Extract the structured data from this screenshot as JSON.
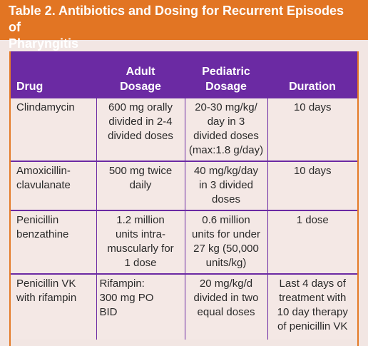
{
  "title": {
    "line1": "Table 2. Antibiotics and Dosing for Recurrent Episodes of",
    "line2": "Pharyngitis"
  },
  "headers": {
    "drug": "Drug",
    "adult_line1": "Adult",
    "adult_line2": "Dosage",
    "pediatric_line1": "Pediatric",
    "pediatric_line2": "Dosage",
    "duration": "Duration"
  },
  "rows": [
    {
      "drug": [
        "Clindamycin"
      ],
      "adult": [
        "600 mg orally",
        "divided in 2-4",
        "divided doses"
      ],
      "pediatric": [
        "20-30 mg/kg/",
        "day in 3",
        "divided doses",
        "(max:1.8 g/day)"
      ],
      "duration": [
        "10 days"
      ]
    },
    {
      "drug": [
        "Amoxicillin-",
        "clavulanate"
      ],
      "adult": [
        "500 mg twice",
        "daily"
      ],
      "pediatric": [
        "40 mg/kg/day",
        "in 3 divided",
        "doses"
      ],
      "duration": [
        "10 days"
      ]
    },
    {
      "drug": [
        "Penicillin",
        "benzathine"
      ],
      "adult": [
        "1.2 million",
        "units intra-",
        "muscularly for",
        "1 dose"
      ],
      "pediatric": [
        "0.6 million",
        "units for under",
        "27 kg (50,000",
        "units/kg)"
      ],
      "duration": [
        "1 dose"
      ]
    },
    {
      "drug": [
        "Penicillin VK",
        "with rifampin"
      ],
      "adult": [
        "Rifampin:",
        "300 mg PO",
        "BID"
      ],
      "pediatric": [
        "20 mg/kg/d",
        "divided in two",
        "equal doses"
      ],
      "duration": [
        "Last 4 days of",
        "treatment with",
        "10 day therapy",
        "of penicillin VK"
      ]
    }
  ],
  "colors": {
    "title_bg": "#e27523",
    "header_bg": "#6b2aa3",
    "page_bg": "#f2e6e3",
    "text": "#2a2a2a"
  }
}
